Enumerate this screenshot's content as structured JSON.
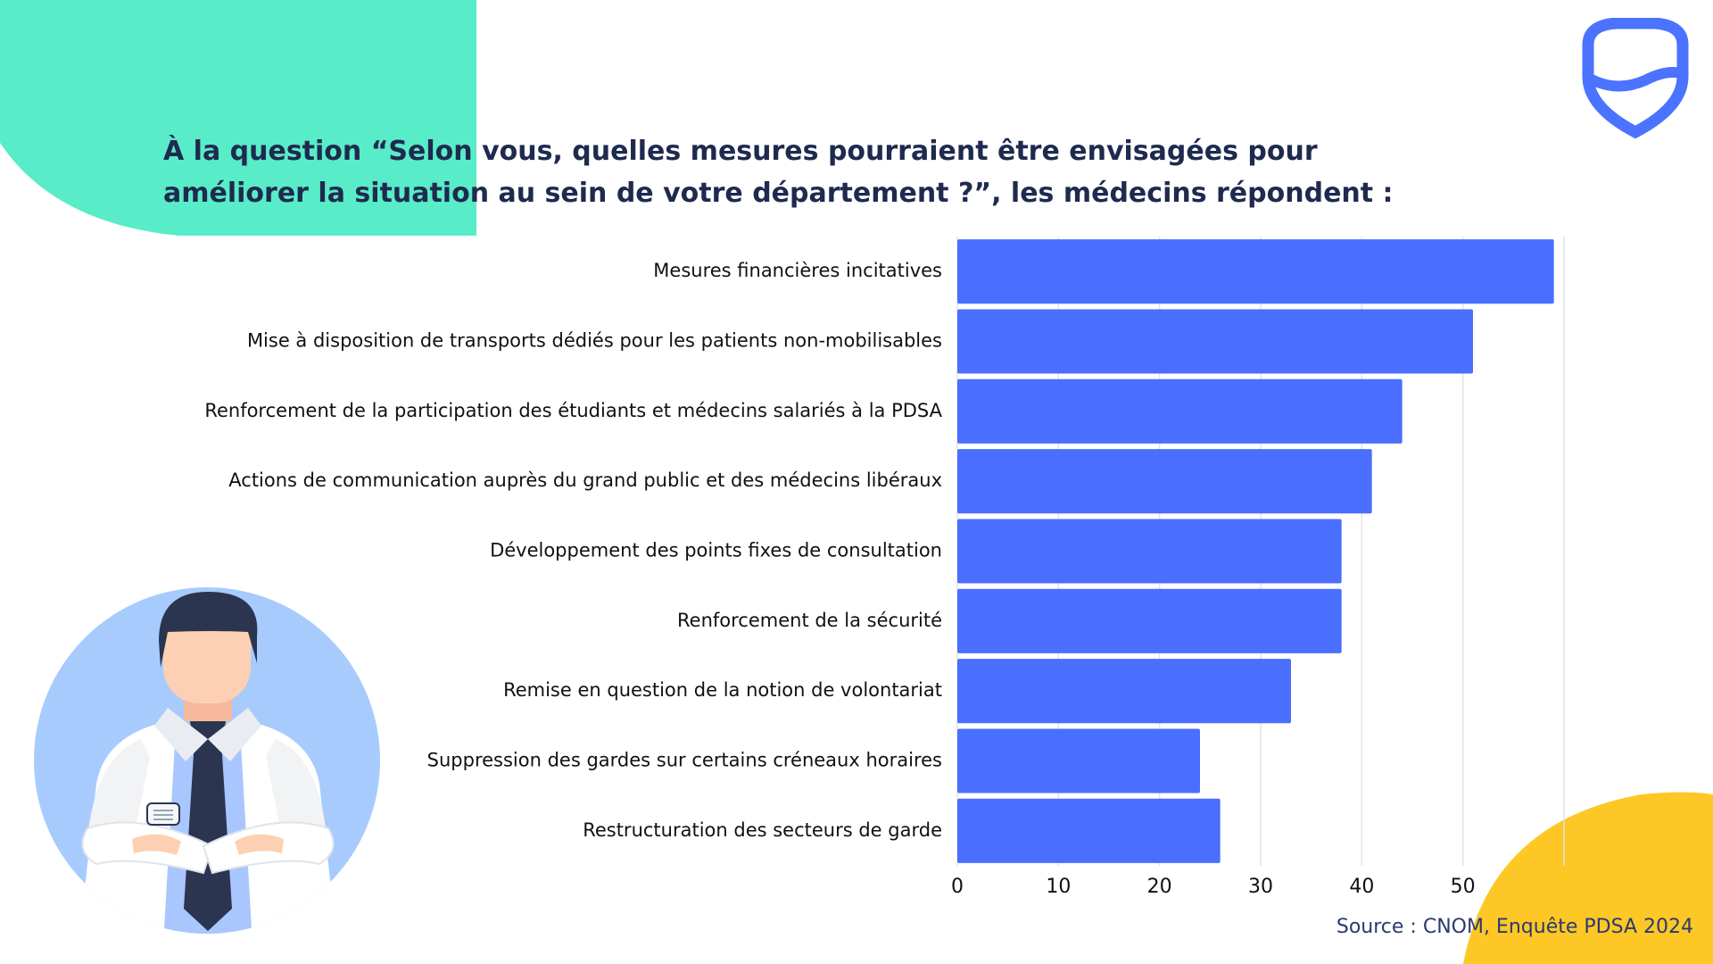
{
  "title": {
    "line1": "À la question “Selon vous, quelles mesures pourraient être envisagées pour",
    "line2": "améliorer la situation au sein de votre département ?”, les médecins répondent :"
  },
  "source": "Source : CNOM, Enquête PDSA 2024",
  "colors": {
    "bar": "#4a6fff",
    "title": "#1e2a4e",
    "accent_green": "#58ecc8",
    "accent_yellow": "#fdc726",
    "logo": "#4b73ff",
    "illustration_circle": "#a7cbfd"
  },
  "illustration": "doctor-arms-crossed",
  "logo_icon": "shield-logo-icon",
  "chart_data": {
    "type": "bar",
    "orientation": "horizontal",
    "categories": [
      "Mesures financières incitatives",
      "Mise à disposition de transports dédiés pour les patients non-mobilisables",
      "Renforcement de la participation des étudiants et médecins salariés à la PDSA",
      "Actions de communication auprès du grand public et des médecins libéraux",
      "Développement des points fixes de consultation",
      "Renforcement de la sécurité",
      "Remise en question de la notion de volontariat",
      "Suppression des gardes sur certains créneaux horaires",
      "Restructuration des secteurs de garde"
    ],
    "values": [
      59,
      51,
      44,
      41,
      38,
      38,
      33,
      24,
      26
    ],
    "xlim": [
      0,
      60
    ],
    "xticks": [
      0,
      10,
      20,
      30,
      40,
      50
    ],
    "grid": true
  }
}
